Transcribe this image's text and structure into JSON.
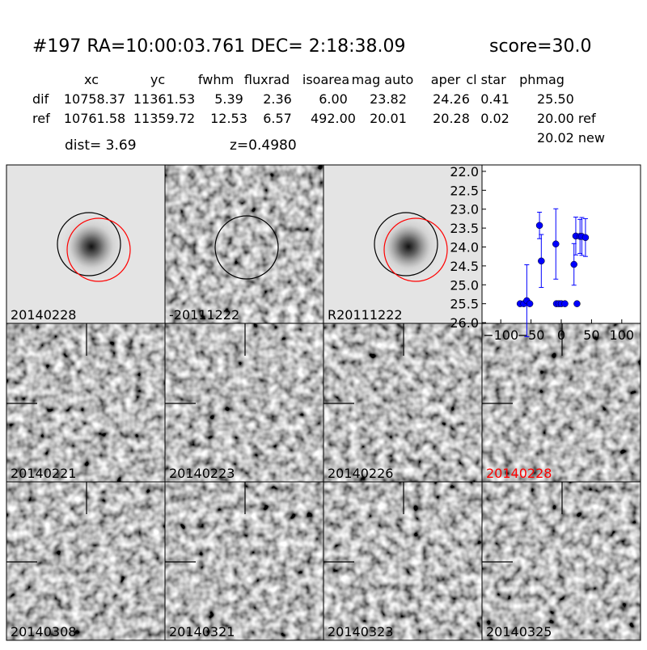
{
  "header": {
    "title": "#197   RA=10:00:03.761 DEC= 2:18:38.09",
    "score": "score=30.0"
  },
  "table": {
    "columns": [
      "xc",
      "yc",
      "fwhm",
      "fluxrad",
      "isoarea",
      "mag auto",
      "aper",
      "cl star",
      "phmag"
    ],
    "rows": [
      [
        "dif",
        "10758.37",
        "11361.53",
        "5.39",
        "2.36",
        "6.00",
        "23.82",
        "24.26",
        "0.41",
        "25.50"
      ],
      [
        "ref",
        "10761.58",
        "11359.72",
        "12.53",
        "6.57",
        "492.00",
        "20.01",
        "20.28",
        "0.02",
        "20.00 ref"
      ]
    ],
    "extra": "20.02 new"
  },
  "dist": "dist=  3.69",
  "z": "z=0.4980",
  "panels": [
    {
      "label": "20140228"
    },
    {
      "label": "-20111222"
    },
    {
      "label": "R20111222"
    },
    {
      "label": "20140221"
    },
    {
      "label": "20140223"
    },
    {
      "label": "20140226"
    },
    {
      "label": "20140228",
      "color": "#ff0000"
    },
    {
      "label": "20140308"
    },
    {
      "label": "20140321"
    },
    {
      "label": "20140323"
    },
    {
      "label": "20140325"
    }
  ],
  "chart_data": {
    "type": "scatter",
    "color": "#0000ff",
    "x": [
      -68,
      -62,
      -57,
      -52,
      -36,
      -33,
      -9,
      -8,
      -4,
      0,
      6,
      21,
      24,
      26,
      31,
      34,
      40
    ],
    "values": [
      25.5,
      25.5,
      25.42,
      25.5,
      23.43,
      24.37,
      23.92,
      25.5,
      25.5,
      25.5,
      25.5,
      24.46,
      23.71,
      25.5,
      23.72,
      23.72,
      23.75
    ],
    "errors": [
      null,
      null,
      0.95,
      null,
      0.35,
      0.7,
      0.93,
      null,
      null,
      null,
      null,
      0.55,
      0.5,
      null,
      0.45,
      0.5,
      0.5
    ],
    "xlim": [
      -131,
      131
    ],
    "xticks": [
      {
        "value": -100,
        "label": "−100"
      },
      {
        "value": -50,
        "label": "−50"
      },
      0,
      50,
      100
    ],
    "ylim": [
      26.02,
      21.83
    ],
    "yticks": [
      {
        "value": 22,
        "label": "22.0"
      },
      {
        "value": 22.5,
        "label": "22.5"
      },
      {
        "value": 23,
        "label": "23.0"
      },
      {
        "value": 23.5,
        "label": "23.5"
      },
      {
        "value": 24,
        "label": "24.0"
      },
      {
        "value": 24.5,
        "label": "24.5"
      },
      {
        "value": 25,
        "label": "25.0"
      },
      {
        "value": 25.5,
        "label": "25.5"
      },
      {
        "value": 26,
        "label": "26.0"
      }
    ]
  }
}
